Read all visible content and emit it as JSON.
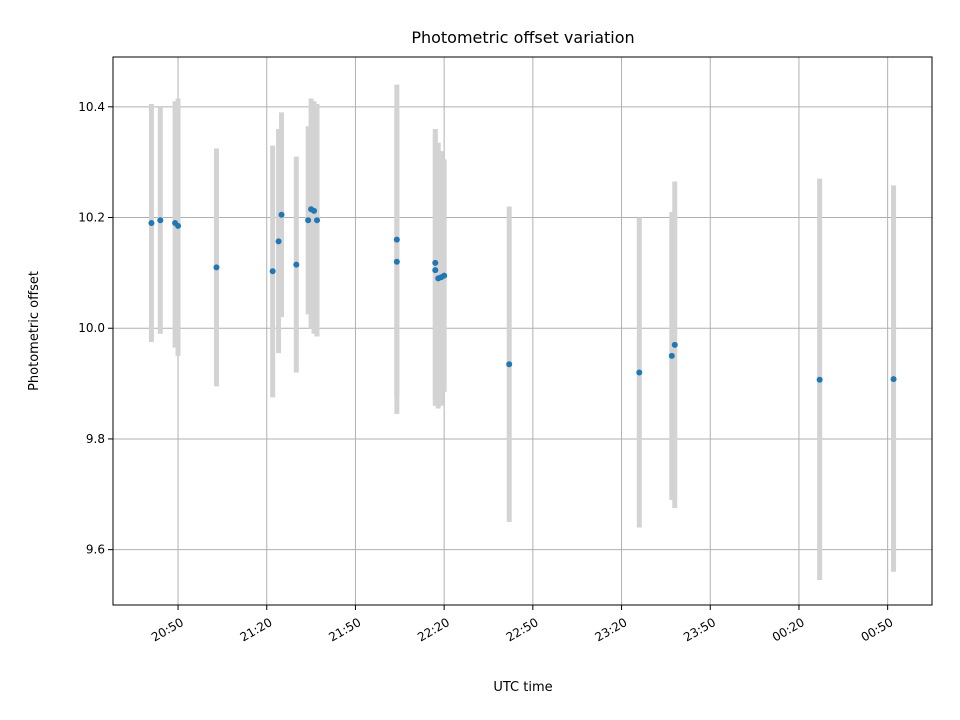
{
  "chart_data": {
    "type": "scatter",
    "title": "Photometric offset variation",
    "xlabel": "UTC time",
    "ylabel": "Photometric offset",
    "x_unit": "minutes",
    "xlim": [
      "20:28",
      "01:05"
    ],
    "ylim": [
      9.5,
      10.49
    ],
    "grid": true,
    "x_ticks": [
      "20:50",
      "21:20",
      "21:50",
      "22:20",
      "22:50",
      "23:20",
      "23:50",
      "00:20",
      "00:50"
    ],
    "y_ticks": [
      9.6,
      9.8,
      10.0,
      10.2,
      10.4
    ],
    "y_tick_labels": [
      "9.6",
      "9.8",
      "10.0",
      "10.2",
      "10.4"
    ],
    "point_color": "#1f77b4",
    "errorbar_color": "#d3d3d3",
    "points": [
      {
        "x": "20:41",
        "y": 10.19,
        "lo": 9.975,
        "hi": 10.405
      },
      {
        "x": "20:44",
        "y": 10.195,
        "lo": 9.99,
        "hi": 10.4
      },
      {
        "x": "20:49",
        "y": 10.19,
        "lo": 9.965,
        "hi": 10.41
      },
      {
        "x": "20:50",
        "y": 10.185,
        "lo": 9.95,
        "hi": 10.415
      },
      {
        "x": "21:03",
        "y": 10.11,
        "lo": 9.895,
        "hi": 10.325
      },
      {
        "x": "21:22",
        "y": 10.103,
        "lo": 9.875,
        "hi": 10.33
      },
      {
        "x": "21:24",
        "y": 10.157,
        "lo": 9.955,
        "hi": 10.36
      },
      {
        "x": "21:25",
        "y": 10.205,
        "lo": 10.02,
        "hi": 10.39
      },
      {
        "x": "21:30",
        "y": 10.115,
        "lo": 9.92,
        "hi": 10.31
      },
      {
        "x": "21:34",
        "y": 10.195,
        "lo": 10.025,
        "hi": 10.365
      },
      {
        "x": "21:35",
        "y": 10.215,
        "lo": 10.0,
        "hi": 10.415
      },
      {
        "x": "21:36",
        "y": 10.212,
        "lo": 9.99,
        "hi": 10.41
      },
      {
        "x": "21:37",
        "y": 10.195,
        "lo": 9.985,
        "hi": 10.405
      },
      {
        "x": "22:04",
        "y": 10.12,
        "lo": 9.845,
        "hi": 10.395
      },
      {
        "x": "22:04",
        "y": 10.16,
        "lo": 9.875,
        "hi": 10.44
      },
      {
        "x": "22:17",
        "y": 10.118,
        "lo": 9.87,
        "hi": 10.36
      },
      {
        "x": "22:17",
        "y": 10.105,
        "lo": 9.86,
        "hi": 10.35
      },
      {
        "x": "22:18",
        "y": 10.09,
        "lo": 9.855,
        "hi": 10.335
      },
      {
        "x": "22:19",
        "y": 10.092,
        "lo": 9.86,
        "hi": 10.32
      },
      {
        "x": "22:20",
        "y": 10.095,
        "lo": 9.885,
        "hi": 10.305
      },
      {
        "x": "22:42",
        "y": 9.935,
        "lo": 9.65,
        "hi": 10.22
      },
      {
        "x": "23:26",
        "y": 9.92,
        "lo": 9.64,
        "hi": 10.2
      },
      {
        "x": "23:37",
        "y": 9.95,
        "lo": 9.69,
        "hi": 10.21
      },
      {
        "x": "23:38",
        "y": 9.97,
        "lo": 9.675,
        "hi": 10.265
      },
      {
        "x": "00:27",
        "y": 9.907,
        "lo": 9.545,
        "hi": 10.27
      },
      {
        "x": "00:52",
        "y": 9.908,
        "lo": 9.56,
        "hi": 10.258
      }
    ]
  }
}
